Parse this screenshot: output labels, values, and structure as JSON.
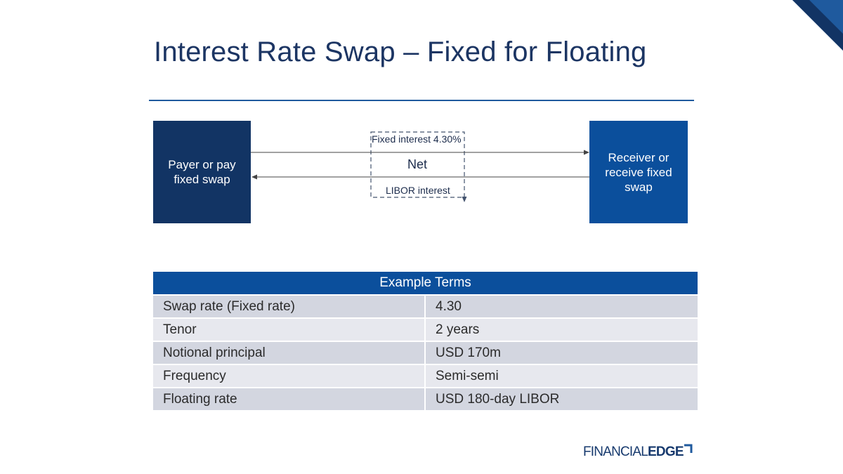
{
  "title": "Interest Rate Swap – Fixed for Floating",
  "diagram": {
    "payer": {
      "label": "Payer or pay\nfixed swap"
    },
    "receiver": {
      "label": "Receiver or\nreceive fixed\nswap"
    },
    "flows": {
      "fixed_label": "Fixed interest 4.30%",
      "libor_label": "LIBOR interest",
      "net_label": "Net"
    }
  },
  "terms_table": {
    "header": "Example Terms",
    "rows": [
      {
        "label": "Swap rate (Fixed rate)",
        "value": "4.30"
      },
      {
        "label": "Tenor",
        "value": "2 years"
      },
      {
        "label": "Notional principal",
        "value": "USD 170m"
      },
      {
        "label": "Frequency",
        "value": "Semi-semi"
      },
      {
        "label": "Floating rate",
        "value": "USD 180-day LIBOR"
      }
    ]
  },
  "logo": {
    "part1": "FINANCIAL",
    "part2": "EDGE"
  },
  "colors": {
    "navy": "#123464",
    "blue": "#0b4f9c",
    "title": "#1c3563",
    "row_dark": "#d3d6e0",
    "row_light": "#e7e8ee"
  }
}
